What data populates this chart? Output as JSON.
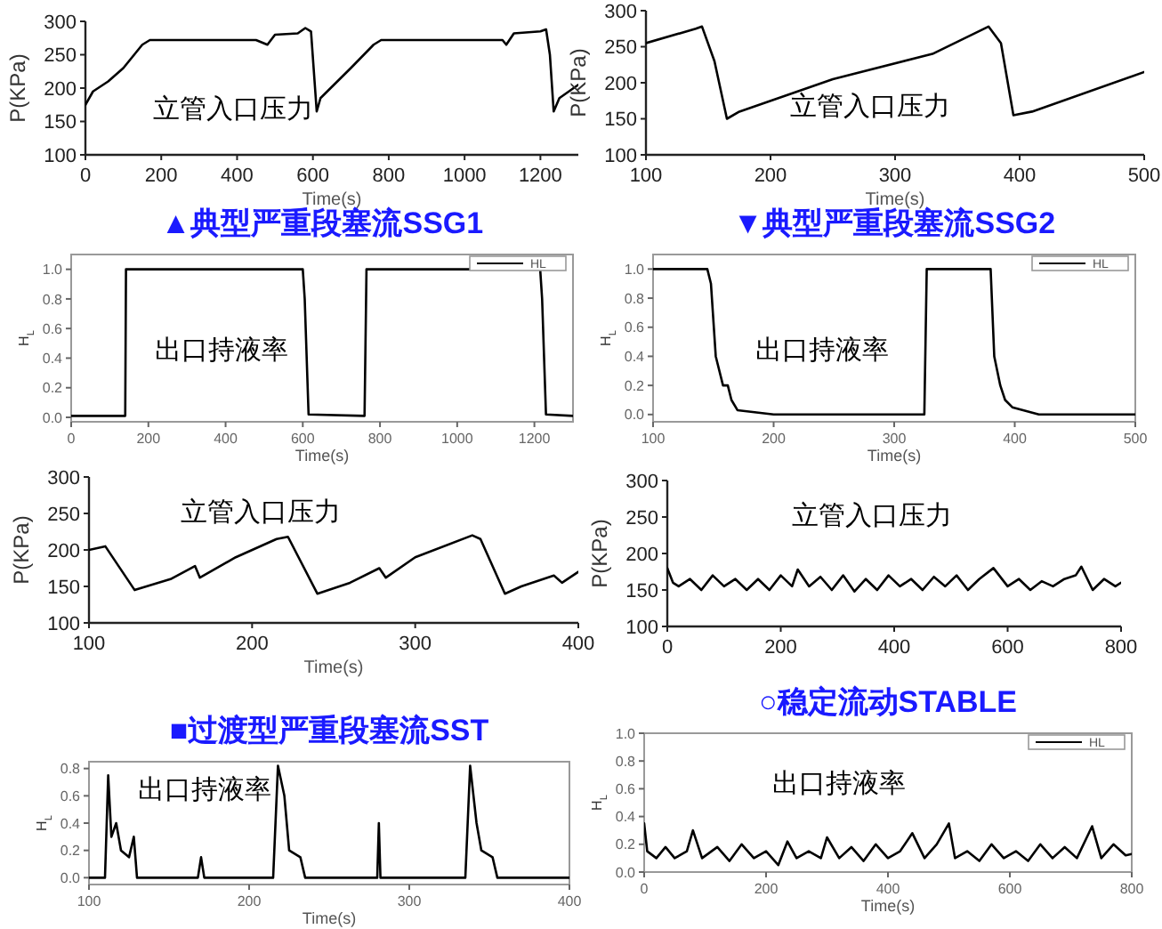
{
  "chart_data": [
    {
      "type": "line",
      "ylabel": "P(KPa)",
      "xlabel": "Time(s)",
      "annotations": [
        "立管入口压力"
      ],
      "xlim": [
        0,
        1300
      ],
      "xticks": [
        0,
        200,
        400,
        600,
        800,
        1000,
        1200
      ],
      "ylim": [
        100,
        300
      ],
      "yticks": [
        100,
        150,
        200,
        250,
        300
      ],
      "grid": false,
      "legend": false,
      "series": [
        {
          "color": "#000000",
          "x": [
            0,
            20,
            60,
            100,
            150,
            170,
            300,
            450,
            480,
            500,
            560,
            580,
            595,
            610,
            620,
            700,
            760,
            780,
            1000,
            1100,
            1110,
            1130,
            1200,
            1215,
            1225,
            1235,
            1250,
            1300
          ],
          "values": [
            175,
            195,
            210,
            230,
            265,
            272,
            272,
            272,
            265,
            280,
            282,
            290,
            285,
            165,
            185,
            230,
            265,
            272,
            272,
            272,
            265,
            282,
            285,
            288,
            250,
            165,
            185,
            205
          ]
        }
      ]
    },
    {
      "type": "line",
      "title": "▲典型严重段塞流SSG1",
      "ylabel": "H$_{L}$",
      "xlabel": "Time(s)",
      "annotations": [
        "出口持液率"
      ],
      "xlim": [
        0,
        1300
      ],
      "xticks": [
        0,
        200,
        400,
        600,
        800,
        1000,
        1200
      ],
      "ylim": [
        -0.03,
        1.1
      ],
      "yticks": [
        {
          "value": 0,
          "label": "0.0"
        },
        {
          "value": 0.2,
          "label": "0.2"
        },
        {
          "value": 0.4,
          "label": "0.4"
        },
        {
          "value": 0.6,
          "label": "0.6"
        },
        {
          "value": 0.8,
          "label": "0.8"
        },
        {
          "value": 1,
          "label": "1.0"
        }
      ],
      "grid": false,
      "legend": "top right",
      "series": [
        {
          "name": "HL",
          "color": "#000000",
          "x": [
            0,
            140,
            142,
            600,
            605,
            615,
            760,
            765,
            1215,
            1220,
            1230,
            1300
          ],
          "values": [
            0.01,
            0.01,
            1.0,
            1.0,
            0.8,
            0.02,
            0.01,
            1.0,
            1.0,
            0.8,
            0.02,
            0.01
          ]
        }
      ]
    },
    {
      "type": "line",
      "ylabel": "P(KPa)",
      "xlabel": "Time(s)",
      "annotations": [
        "立管入口压力"
      ],
      "xlim": [
        100,
        500
      ],
      "xticks": [
        100,
        200,
        300,
        400,
        500
      ],
      "ylim": [
        100,
        300
      ],
      "yticks": [
        100,
        150,
        200,
        250,
        300
      ],
      "grid": false,
      "legend": false,
      "series": [
        {
          "color": "#000000",
          "x": [
            100,
            140,
            145,
            155,
            165,
            175,
            250,
            330,
            375,
            385,
            395,
            410,
            500
          ],
          "values": [
            255,
            275,
            278,
            230,
            150,
            160,
            205,
            240,
            278,
            255,
            155,
            160,
            215
          ]
        }
      ]
    },
    {
      "type": "line",
      "title": "▼典型严重段塞流SSG2",
      "ylabel": "H$_{L}$",
      "xlabel": "Time(s)",
      "annotations": [
        "出口持液率"
      ],
      "xlim": [
        100,
        500
      ],
      "xticks": [
        100,
        200,
        300,
        400,
        500
      ],
      "ylim": [
        -0.05,
        1.1
      ],
      "yticks": [
        {
          "value": 0,
          "label": "0.0"
        },
        {
          "value": 0.2,
          "label": "0.2"
        },
        {
          "value": 0.4,
          "label": "0.4"
        },
        {
          "value": 0.6,
          "label": "0.6"
        },
        {
          "value": 0.8,
          "label": "0.8"
        },
        {
          "value": 1,
          "label": "1.0"
        }
      ],
      "grid": false,
      "legend": "top right",
      "series": [
        {
          "name": "HL",
          "color": "#000000",
          "x": [
            100,
            145,
            148,
            152,
            158,
            162,
            165,
            170,
            200,
            260,
            325,
            327,
            380,
            383,
            388,
            392,
            398,
            420,
            500
          ],
          "values": [
            1.0,
            1.0,
            0.9,
            0.4,
            0.2,
            0.2,
            0.1,
            0.03,
            0.0,
            0.0,
            0.0,
            1.0,
            1.0,
            0.4,
            0.2,
            0.1,
            0.05,
            0.0,
            0.0
          ]
        }
      ]
    },
    {
      "type": "line",
      "ylabel": "P(KPa)",
      "xlabel": "Time(s)",
      "annotations": [
        "立管入口压力"
      ],
      "xlim": [
        100,
        400
      ],
      "xticks": [
        100,
        200,
        300,
        400
      ],
      "ylim": [
        100,
        300
      ],
      "yticks": [
        100,
        150,
        200,
        250,
        300
      ],
      "grid": false,
      "legend": false,
      "series": [
        {
          "color": "#000000",
          "x": [
            100,
            110,
            128,
            150,
            165,
            168,
            190,
            215,
            222,
            240,
            260,
            278,
            282,
            300,
            335,
            340,
            355,
            365,
            385,
            390,
            400
          ],
          "values": [
            200,
            205,
            145,
            160,
            178,
            162,
            190,
            215,
            218,
            140,
            155,
            175,
            162,
            190,
            220,
            215,
            140,
            150,
            165,
            155,
            170
          ]
        }
      ]
    },
    {
      "type": "line",
      "title": "■过渡型严重段塞流SST",
      "ylabel": "H$_{L}$",
      "xlabel": "Time(s)",
      "annotations": [
        "出口持液率"
      ],
      "xlim": [
        100,
        400
      ],
      "xticks": [
        100,
        200,
        300,
        400
      ],
      "ylim": [
        -0.05,
        0.85
      ],
      "yticks": [
        {
          "value": 0,
          "label": "0.0"
        },
        {
          "value": 0.2,
          "label": "0.2"
        },
        {
          "value": 0.4,
          "label": "0.4"
        },
        {
          "value": 0.6,
          "label": "0.6"
        },
        {
          "value": 0.8,
          "label": "0.8"
        }
      ],
      "grid": false,
      "legend": false,
      "series": [
        {
          "color": "#000000",
          "x": [
            100,
            110,
            112,
            114,
            117,
            120,
            125,
            128,
            130,
            168,
            170,
            172,
            215,
            218,
            222,
            225,
            232,
            235,
            280,
            281,
            282,
            335,
            338,
            342,
            345,
            352,
            355,
            400
          ],
          "values": [
            0.0,
            0.0,
            0.75,
            0.3,
            0.4,
            0.2,
            0.15,
            0.3,
            0.0,
            0.0,
            0.15,
            0.0,
            0.0,
            0.82,
            0.6,
            0.2,
            0.15,
            0.0,
            0.0,
            0.4,
            0.0,
            0.0,
            0.82,
            0.4,
            0.2,
            0.15,
            0.0,
            0.0
          ]
        }
      ]
    },
    {
      "type": "line",
      "ylabel": "P(KPa)",
      "annotations": [
        "立管入口压力"
      ],
      "xlim": [
        0,
        800
      ],
      "xticks": [
        0,
        200,
        400,
        600,
        800
      ],
      "ylim": [
        100,
        300
      ],
      "yticks": [
        100,
        150,
        200,
        250,
        300
      ],
      "grid": false,
      "legend": false,
      "series": [
        {
          "color": "#000000",
          "x": [
            0,
            10,
            20,
            40,
            60,
            80,
            100,
            120,
            140,
            160,
            180,
            200,
            220,
            230,
            250,
            270,
            290,
            310,
            330,
            350,
            370,
            390,
            410,
            430,
            450,
            470,
            490,
            510,
            530,
            550,
            575,
            600,
            620,
            640,
            660,
            680,
            700,
            720,
            730,
            750,
            770,
            790,
            800
          ],
          "values": [
            180,
            160,
            155,
            165,
            150,
            170,
            155,
            165,
            150,
            165,
            150,
            170,
            155,
            178,
            155,
            168,
            150,
            170,
            148,
            165,
            150,
            170,
            155,
            165,
            150,
            168,
            155,
            170,
            150,
            165,
            180,
            155,
            165,
            150,
            162,
            155,
            165,
            170,
            182,
            150,
            165,
            155,
            160
          ]
        }
      ]
    },
    {
      "type": "line",
      "title": "○稳定流动STABLE",
      "ylabel": "H$_{L}$",
      "xlabel": "Time(s)",
      "annotations": [
        "出口持液率"
      ],
      "xlim": [
        0,
        800
      ],
      "xticks": [
        0,
        200,
        400,
        600,
        800
      ],
      "ylim": [
        0,
        1.0
      ],
      "yticks": [
        {
          "value": 0,
          "label": "0.0"
        },
        {
          "value": 0.2,
          "label": "0.2"
        },
        {
          "value": 0.4,
          "label": "0.4"
        },
        {
          "value": 0.6,
          "label": "0.6"
        },
        {
          "value": 0.8,
          "label": "0.8"
        },
        {
          "value": 1,
          "label": "1.0"
        }
      ],
      "grid": false,
      "legend": "top right",
      "series": [
        {
          "name": "HL",
          "color": "#000000",
          "x": [
            0,
            5,
            20,
            35,
            50,
            70,
            80,
            95,
            120,
            140,
            160,
            180,
            200,
            220,
            235,
            250,
            270,
            290,
            300,
            320,
            340,
            360,
            380,
            400,
            420,
            440,
            460,
            480,
            500,
            510,
            530,
            550,
            570,
            590,
            610,
            630,
            650,
            670,
            690,
            710,
            735,
            750,
            770,
            790,
            800
          ],
          "values": [
            0.35,
            0.15,
            0.1,
            0.18,
            0.1,
            0.15,
            0.3,
            0.1,
            0.18,
            0.08,
            0.2,
            0.1,
            0.15,
            0.05,
            0.22,
            0.1,
            0.15,
            0.1,
            0.25,
            0.1,
            0.18,
            0.08,
            0.2,
            0.1,
            0.15,
            0.28,
            0.1,
            0.2,
            0.35,
            0.1,
            0.15,
            0.08,
            0.2,
            0.1,
            0.15,
            0.08,
            0.2,
            0.1,
            0.18,
            0.1,
            0.33,
            0.1,
            0.2,
            0.12,
            0.13
          ]
        }
      ]
    }
  ]
}
